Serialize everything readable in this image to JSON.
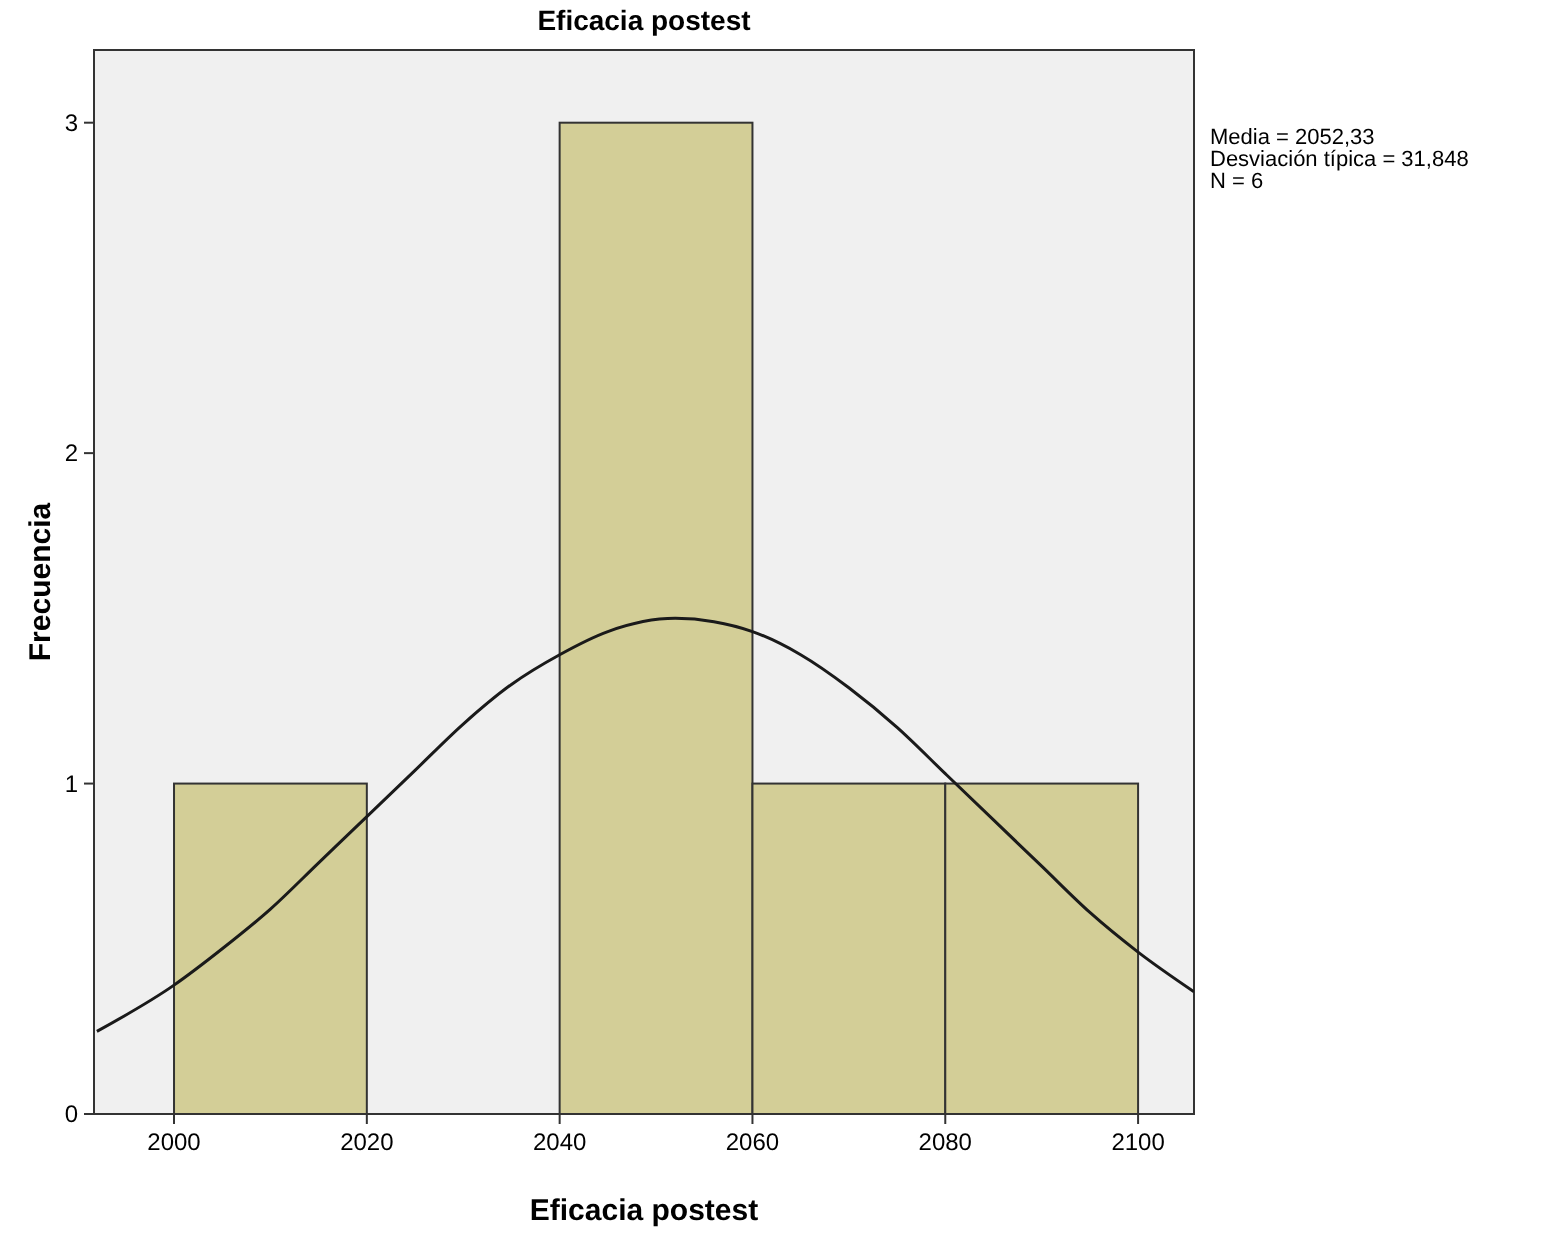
{
  "chart_data": {
    "type": "histogram",
    "title": "Eficacia postest",
    "xlabel": "Eficacia postest",
    "ylabel": "Frecuencia",
    "bins": [
      2000,
      2020,
      2040,
      2060,
      2080,
      2100
    ],
    "values": [
      1,
      0,
      3,
      1,
      1
    ],
    "color": "#d3ce97",
    "series": [
      {
        "type": "line",
        "color": "#1a1a1a",
        "marker": "none",
        "x": [
          1992,
          2000,
          2005,
          2010,
          2015,
          2020,
          2025,
          2030,
          2035,
          2040,
          2045,
          2052,
          2056,
          2060,
          2065,
          2070,
          2075,
          2080,
          2085,
          2090,
          2095,
          2100,
          2105.8
        ],
        "values": [
          0.25,
          0.39,
          0.5,
          0.62,
          0.76,
          0.9,
          1.04,
          1.18,
          1.3,
          1.39,
          1.46,
          1.5,
          1.49,
          1.46,
          1.39,
          1.29,
          1.17,
          1.03,
          0.89,
          0.75,
          0.61,
          0.49,
          0.37
        ]
      }
    ],
    "xlim": [
      1991.7,
      2105.8
    ],
    "xticks": [
      2000,
      2020,
      2040,
      2060,
      2080,
      2100
    ],
    "ylim": [
      0,
      3.22
    ],
    "yticks": [
      0,
      1,
      2,
      3
    ],
    "grid": false,
    "annotations": [
      "Media = 2052,33",
      "Desviación típica = 31,848",
      "N = 6"
    ]
  }
}
